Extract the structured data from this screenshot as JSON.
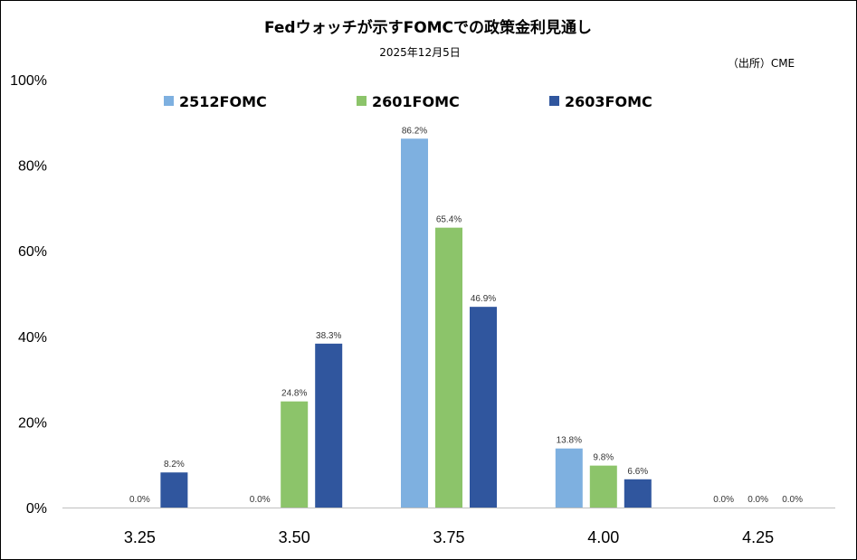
{
  "chart_data": {
    "type": "bar",
    "title": "Fedウォッチが示すFOMCでの政策金利見通し",
    "subtitle": "2025年12月5日",
    "source": "（出所）CME",
    "categories": [
      "3.25",
      "3.50",
      "3.75",
      "4.00",
      "4.25"
    ],
    "series": [
      {
        "name": "2512FOMC",
        "color": "#7EB0E0",
        "values": [
          0.0,
          0.0,
          86.2,
          13.8,
          0.0
        ]
      },
      {
        "name": "2601FOMC",
        "color": "#8CC46A",
        "values": [
          0.0,
          24.8,
          65.4,
          9.8,
          0.0
        ]
      },
      {
        "name": "2603FOMC",
        "color": "#30569E",
        "values": [
          8.2,
          38.3,
          46.9,
          6.6,
          0.0
        ]
      }
    ],
    "data_labels": [
      [
        "",
        "0.0%",
        "86.2%",
        "13.8%",
        "0.0%"
      ],
      [
        "0.0%",
        "24.8%",
        "65.4%",
        "9.8%",
        "0.0%"
      ],
      [
        "8.2%",
        "38.3%",
        "46.9%",
        "6.6%",
        "0.0%"
      ]
    ],
    "y_ticks": [
      "0%",
      "20%",
      "40%",
      "60%",
      "80%",
      "100%"
    ],
    "ylim": [
      0,
      100
    ],
    "grid": false,
    "legend_position": "top"
  }
}
